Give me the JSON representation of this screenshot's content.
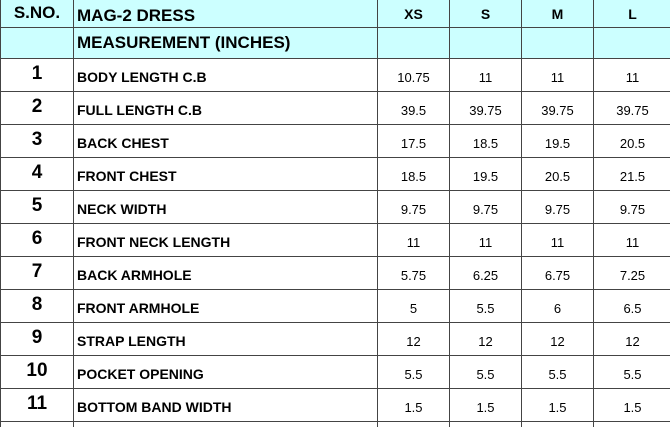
{
  "header": {
    "sno_label": "S.NO.",
    "title": "MAG-2 DRESS",
    "subtitle": "MEASUREMENT (INCHES)",
    "sizes": [
      "XS",
      "S",
      "M",
      "L"
    ]
  },
  "rows": [
    {
      "sno": "1",
      "label": "BODY LENGTH C.B",
      "values": [
        "10.75",
        "11",
        "11",
        "11"
      ]
    },
    {
      "sno": "2",
      "label": "FULL LENGTH C.B",
      "values": [
        "39.5",
        "39.75",
        "39.75",
        "39.75"
      ]
    },
    {
      "sno": "3",
      "label": "BACK CHEST",
      "values": [
        "17.5",
        "18.5",
        "19.5",
        "20.5"
      ]
    },
    {
      "sno": "4",
      "label": "FRONT CHEST",
      "values": [
        "18.5",
        "19.5",
        "20.5",
        "21.5"
      ]
    },
    {
      "sno": "5",
      "label": "NECK WIDTH",
      "values": [
        "9.75",
        "9.75",
        "9.75",
        "9.75"
      ]
    },
    {
      "sno": "6",
      "label": "FRONT NECK LENGTH",
      "values": [
        "11",
        "11",
        "11",
        "11"
      ]
    },
    {
      "sno": "7",
      "label": "BACK ARMHOLE",
      "values": [
        "5.75",
        "6.25",
        "6.75",
        "7.25"
      ]
    },
    {
      "sno": "8",
      "label": "FRONT ARMHOLE",
      "values": [
        "5",
        "5.5",
        "6",
        "6.5"
      ]
    },
    {
      "sno": "9",
      "label": "STRAP LENGTH",
      "values": [
        "12",
        "12",
        "12",
        "12"
      ]
    },
    {
      "sno": "10",
      "label": "POCKET OPENING",
      "values": [
        "5.5",
        "5.5",
        "5.5",
        "5.5"
      ]
    },
    {
      "sno": "11",
      "label": "BOTTOM BAND WIDTH",
      "values": [
        "1.5",
        "1.5",
        "1.5",
        "1.5"
      ]
    }
  ]
}
